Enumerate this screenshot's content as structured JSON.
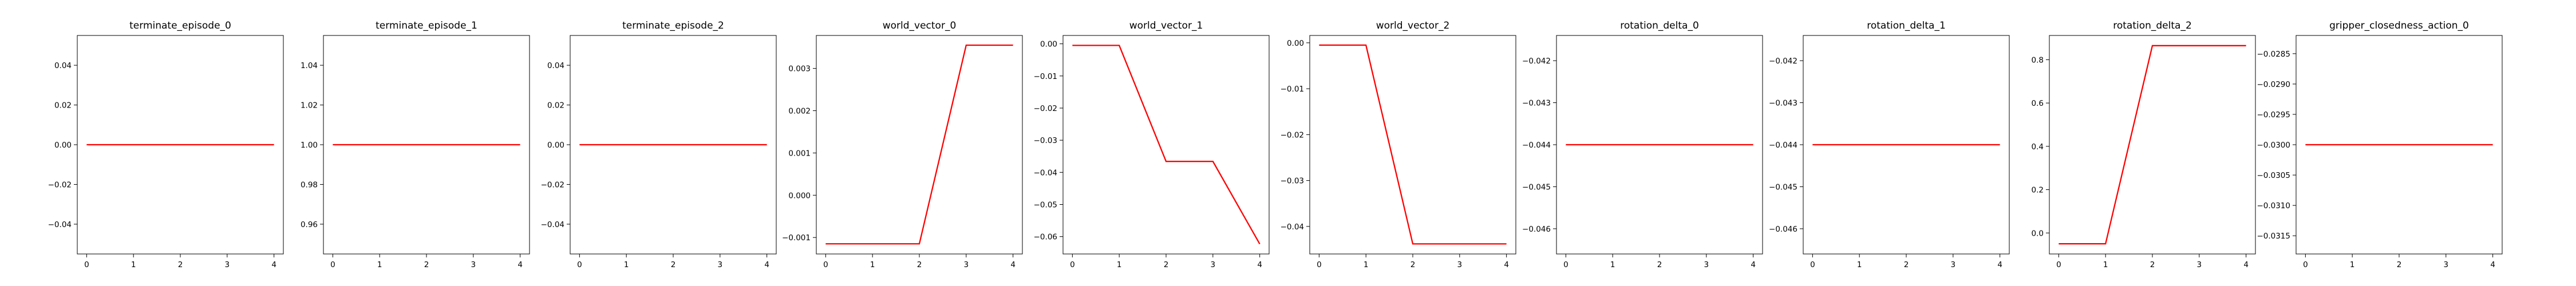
{
  "line_color": "#ff0000",
  "chart_data": [
    {
      "type": "line",
      "title": "terminate_episode_0",
      "x": [
        0,
        1,
        2,
        3,
        4
      ],
      "series": [
        {
          "values": [
            0,
            0,
            0,
            0,
            0
          ]
        }
      ],
      "xlim": [
        -0.2,
        4.2
      ],
      "ylim": [
        -0.055,
        0.055
      ],
      "xticks": [
        0,
        1,
        2,
        3,
        4
      ],
      "xtick_labels": [
        "0",
        "1",
        "2",
        "3",
        "4"
      ],
      "yticks": [
        -0.04,
        -0.02,
        0.0,
        0.02,
        0.04
      ],
      "ytick_labels": [
        "−0.04",
        "−0.02",
        "0.00",
        "0.02",
        "0.04"
      ],
      "grid": false
    },
    {
      "type": "line",
      "title": "terminate_episode_1",
      "x": [
        0,
        1,
        2,
        3,
        4
      ],
      "series": [
        {
          "values": [
            1,
            1,
            1,
            1,
            1
          ]
        }
      ],
      "xlim": [
        -0.2,
        4.2
      ],
      "ylim": [
        0.945,
        1.055
      ],
      "xticks": [
        0,
        1,
        2,
        3,
        4
      ],
      "xtick_labels": [
        "0",
        "1",
        "2",
        "3",
        "4"
      ],
      "yticks": [
        0.96,
        0.98,
        1.0,
        1.02,
        1.04
      ],
      "ytick_labels": [
        "0.96",
        "0.98",
        "1.00",
        "1.02",
        "1.04"
      ],
      "grid": false
    },
    {
      "type": "line",
      "title": "terminate_episode_2",
      "x": [
        0,
        1,
        2,
        3,
        4
      ],
      "series": [
        {
          "values": [
            0,
            0,
            0,
            0,
            0
          ]
        }
      ],
      "xlim": [
        -0.2,
        4.2
      ],
      "ylim": [
        -0.055,
        0.055
      ],
      "xticks": [
        0,
        1,
        2,
        3,
        4
      ],
      "xtick_labels": [
        "0",
        "1",
        "2",
        "3",
        "4"
      ],
      "yticks": [
        -0.04,
        -0.02,
        0.0,
        0.02,
        0.04
      ],
      "ytick_labels": [
        "−0.04",
        "−0.02",
        "0.00",
        "0.02",
        "0.04"
      ],
      "grid": false
    },
    {
      "type": "line",
      "title": "world_vector_0",
      "x": [
        0,
        1,
        2,
        3,
        4
      ],
      "series": [
        {
          "values": [
            -0.00115,
            -0.00115,
            -0.00115,
            0.00355,
            0.00355
          ]
        }
      ],
      "xlim": [
        -0.2,
        4.2
      ],
      "ylim": [
        -0.00139,
        0.00378
      ],
      "xticks": [
        0,
        1,
        2,
        3,
        4
      ],
      "xtick_labels": [
        "0",
        "1",
        "2",
        "3",
        "4"
      ],
      "yticks": [
        -0.001,
        0.0,
        0.001,
        0.002,
        0.003
      ],
      "ytick_labels": [
        "−0.001",
        "0.000",
        "0.001",
        "0.002",
        "0.003"
      ],
      "grid": false
    },
    {
      "type": "line",
      "title": "world_vector_1",
      "x": [
        0,
        1,
        2,
        3,
        4
      ],
      "series": [
        {
          "values": [
            -0.0005,
            -0.0005,
            -0.0366,
            -0.0366,
            -0.0623
          ]
        }
      ],
      "xlim": [
        -0.2,
        4.2
      ],
      "ylim": [
        -0.0654,
        0.0026
      ],
      "xticks": [
        0,
        1,
        2,
        3,
        4
      ],
      "xtick_labels": [
        "0",
        "1",
        "2",
        "3",
        "4"
      ],
      "yticks": [
        -0.06,
        -0.05,
        -0.04,
        -0.03,
        -0.02,
        -0.01,
        0.0
      ],
      "ytick_labels": [
        "−0.06",
        "−0.05",
        "−0.04",
        "−0.03",
        "−0.02",
        "−0.01",
        "0.00"
      ],
      "grid": false
    },
    {
      "type": "line",
      "title": "world_vector_2",
      "x": [
        0,
        1,
        2,
        3,
        4
      ],
      "series": [
        {
          "values": [
            -0.0005,
            -0.0005,
            -0.0438,
            -0.0438,
            -0.0438
          ]
        }
      ],
      "xlim": [
        -0.2,
        4.2
      ],
      "ylim": [
        -0.046,
        0.0016
      ],
      "xticks": [
        0,
        1,
        2,
        3,
        4
      ],
      "xtick_labels": [
        "0",
        "1",
        "2",
        "3",
        "4"
      ],
      "yticks": [
        -0.04,
        -0.03,
        -0.02,
        -0.01,
        0.0
      ],
      "ytick_labels": [
        "−0.04",
        "−0.03",
        "−0.02",
        "−0.01",
        "0.00"
      ],
      "grid": false
    },
    {
      "type": "line",
      "title": "rotation_delta_0",
      "x": [
        0,
        1,
        2,
        3,
        4
      ],
      "series": [
        {
          "values": [
            -0.044,
            -0.044,
            -0.044,
            -0.044,
            -0.044
          ]
        }
      ],
      "xlim": [
        -0.2,
        4.2
      ],
      "ylim": [
        -0.0466,
        -0.0414
      ],
      "xticks": [
        0,
        1,
        2,
        3,
        4
      ],
      "xtick_labels": [
        "0",
        "1",
        "2",
        "3",
        "4"
      ],
      "yticks": [
        -0.046,
        -0.045,
        -0.044,
        -0.043,
        -0.042
      ],
      "ytick_labels": [
        "−0.046",
        "−0.045",
        "−0.044",
        "−0.043",
        "−0.042"
      ],
      "grid": false
    },
    {
      "type": "line",
      "title": "rotation_delta_1",
      "x": [
        0,
        1,
        2,
        3,
        4
      ],
      "series": [
        {
          "values": [
            -0.044,
            -0.044,
            -0.044,
            -0.044,
            -0.044
          ]
        }
      ],
      "xlim": [
        -0.2,
        4.2
      ],
      "ylim": [
        -0.0466,
        -0.0414
      ],
      "xticks": [
        0,
        1,
        2,
        3,
        4
      ],
      "xtick_labels": [
        "0",
        "1",
        "2",
        "3",
        "4"
      ],
      "yticks": [
        -0.046,
        -0.045,
        -0.044,
        -0.043,
        -0.042
      ],
      "ytick_labels": [
        "−0.046",
        "−0.045",
        "−0.044",
        "−0.043",
        "−0.042"
      ],
      "grid": false
    },
    {
      "type": "line",
      "title": "rotation_delta_2",
      "x": [
        0,
        1,
        2,
        3,
        4
      ],
      "series": [
        {
          "values": [
            -0.05,
            -0.05,
            0.865,
            0.865,
            0.865
          ]
        }
      ],
      "xlim": [
        -0.2,
        4.2
      ],
      "ylim": [
        -0.097,
        0.912
      ],
      "xticks": [
        0,
        1,
        2,
        3,
        4
      ],
      "xtick_labels": [
        "0",
        "1",
        "2",
        "3",
        "4"
      ],
      "yticks": [
        0.0,
        0.2,
        0.4,
        0.6,
        0.8
      ],
      "ytick_labels": [
        "0.0",
        "0.2",
        "0.4",
        "0.6",
        "0.8"
      ],
      "grid": false
    },
    {
      "type": "line",
      "title": "gripper_closedness_action_0",
      "x": [
        0,
        1,
        2,
        3,
        4
      ],
      "series": [
        {
          "values": [
            -0.03,
            -0.03,
            -0.03,
            -0.03,
            -0.03
          ]
        }
      ],
      "xlim": [
        -0.2,
        4.2
      ],
      "ylim": [
        -0.0318,
        -0.0282
      ],
      "xticks": [
        0,
        1,
        2,
        3,
        4
      ],
      "xtick_labels": [
        "0",
        "1",
        "2",
        "3",
        "4"
      ],
      "yticks": [
        -0.0315,
        -0.031,
        -0.0305,
        -0.03,
        -0.0295,
        -0.029,
        -0.0285
      ],
      "ytick_labels": [
        "−0.0315",
        "−0.0310",
        "−0.0305",
        "−0.0300",
        "−0.0295",
        "−0.0290",
        "−0.0285"
      ],
      "grid": false
    }
  ]
}
